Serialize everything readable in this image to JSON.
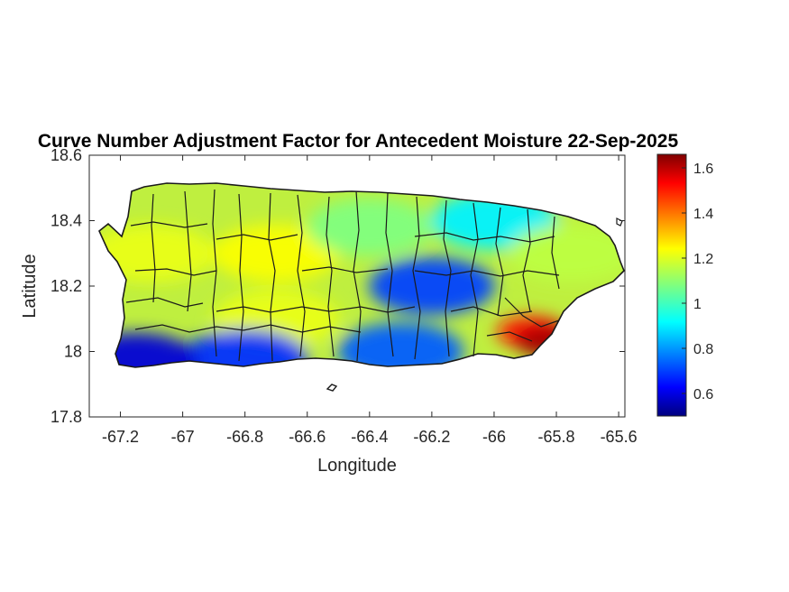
{
  "chart_data": {
    "type": "heatmap",
    "title": "Curve Number Adjustment Factor for Antecedent Moisture 22-Sep-2025",
    "xlabel": "Longitude",
    "ylabel": "Latitude",
    "xlim": [
      -67.3,
      -65.58
    ],
    "ylim": [
      17.8,
      18.6
    ],
    "xticks": [
      -67.2,
      -67,
      -66.8,
      -66.6,
      -66.4,
      -66.2,
      -66,
      -65.8,
      -65.6
    ],
    "xtick_labels": [
      "-67.2",
      "-67",
      "-66.8",
      "-66.6",
      "-66.4",
      "-66.2",
      "-66",
      "-65.8",
      "-65.6"
    ],
    "yticks": [
      17.8,
      18,
      18.2,
      18.4,
      18.6
    ],
    "ytick_labels": [
      "17.8",
      "18",
      "18.2",
      "18.4",
      "18.6"
    ],
    "grid": false,
    "colormap": "jet",
    "colorbar": {
      "range": [
        0.5,
        1.66
      ],
      "ticks": [
        0.6,
        0.8,
        1,
        1.2,
        1.4,
        1.6
      ],
      "tick_labels": [
        "0.6",
        "0.8",
        "1",
        "1.2",
        "1.4",
        "1.6"
      ],
      "location": "right"
    },
    "value_field": {
      "description_of_pattern": "north and west near 1.1-1.25; south coast band near 0.6-0.8; interior east near 0.7-0.9; southeast corner near 1.35-1.6",
      "regions": [
        {
          "lon": -67.1,
          "lat": 18.3,
          "value": 1.2
        },
        {
          "lon": -66.7,
          "lat": 18.3,
          "value": 1.22
        },
        {
          "lon": -66.4,
          "lat": 18.38,
          "value": 1.08
        },
        {
          "lon": -66.0,
          "lat": 18.4,
          "value": 0.92
        },
        {
          "lon": -65.75,
          "lat": 18.3,
          "value": 1.15
        },
        {
          "lon": -66.2,
          "lat": 18.2,
          "value": 0.72
        },
        {
          "lon": -66.7,
          "lat": 18.1,
          "value": 1.2
        },
        {
          "lon": -66.8,
          "lat": 17.98,
          "value": 0.7
        },
        {
          "lon": -67.15,
          "lat": 17.97,
          "value": 0.6
        },
        {
          "lon": -66.3,
          "lat": 18.0,
          "value": 0.75
        },
        {
          "lon": -65.88,
          "lat": 18.06,
          "value": 1.5
        },
        {
          "lon": -65.82,
          "lat": 18.03,
          "value": 1.62
        }
      ]
    }
  }
}
